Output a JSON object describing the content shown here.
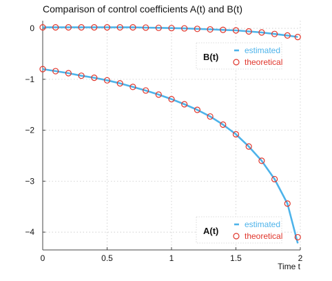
{
  "chart_data": {
    "type": "line",
    "title": "Comparison of control coefficients A(t) and B(t)",
    "xlabel": "Time t",
    "ylabel": "",
    "xlim": [
      0,
      2
    ],
    "ylim": [
      -4.35,
      0.15
    ],
    "xticks": [
      0,
      0.5,
      1,
      1.5,
      2
    ],
    "xtick_labels": [
      "0",
      "0.5",
      "1",
      "1.5",
      "2"
    ],
    "yticks": [
      0,
      -1,
      -2,
      -3,
      -4
    ],
    "ytick_labels": [
      "0",
      "−1",
      "−2",
      "−3",
      "−4"
    ],
    "grid": true,
    "colors": {
      "estimated": "#4db3ea",
      "theoretical": "#e0352b"
    },
    "groups": [
      {
        "label": "B(t)",
        "legend_position": "upper-right",
        "series": [
          {
            "name": "estimated",
            "style": "line",
            "x": [
              0,
              0.1,
              0.2,
              0.3,
              0.4,
              0.5,
              0.6,
              0.7,
              0.8,
              0.9,
              1.0,
              1.1,
              1.2,
              1.3,
              1.4,
              1.5,
              1.6,
              1.7,
              1.8,
              1.9,
              1.98
            ],
            "y": [
              0.02,
              0.02,
              0.02,
              0.02,
              0.02,
              0.02,
              0.02,
              0.02,
              0.015,
              0.01,
              0.005,
              0.0,
              -0.01,
              -0.02,
              -0.03,
              -0.04,
              -0.06,
              -0.08,
              -0.11,
              -0.14,
              -0.17
            ]
          },
          {
            "name": "theoretical",
            "style": "markers",
            "x": [
              0,
              0.1,
              0.2,
              0.3,
              0.4,
              0.5,
              0.6,
              0.7,
              0.8,
              0.9,
              1.0,
              1.1,
              1.2,
              1.3,
              1.4,
              1.5,
              1.6,
              1.7,
              1.8,
              1.9,
              1.98
            ],
            "y": [
              0.02,
              0.02,
              0.02,
              0.02,
              0.02,
              0.02,
              0.02,
              0.02,
              0.015,
              0.01,
              0.005,
              0.0,
              -0.01,
              -0.02,
              -0.03,
              -0.04,
              -0.06,
              -0.08,
              -0.11,
              -0.14,
              -0.17
            ]
          }
        ]
      },
      {
        "label": "A(t)",
        "legend_position": "lower-right",
        "series": [
          {
            "name": "estimated",
            "style": "line",
            "x": [
              0,
              0.1,
              0.2,
              0.3,
              0.4,
              0.5,
              0.6,
              0.7,
              0.8,
              0.9,
              1.0,
              1.1,
              1.2,
              1.3,
              1.4,
              1.5,
              1.6,
              1.7,
              1.8,
              1.9,
              1.98
            ],
            "y": [
              -0.8,
              -0.84,
              -0.88,
              -0.93,
              -0.97,
              -1.02,
              -1.08,
              -1.15,
              -1.22,
              -1.3,
              -1.39,
              -1.49,
              -1.6,
              -1.73,
              -1.89,
              -2.08,
              -2.32,
              -2.6,
              -2.96,
              -3.44,
              -4.22
            ]
          },
          {
            "name": "theoretical",
            "style": "markers",
            "x": [
              0,
              0.1,
              0.2,
              0.3,
              0.4,
              0.5,
              0.6,
              0.7,
              0.8,
              0.9,
              1.0,
              1.1,
              1.2,
              1.3,
              1.4,
              1.5,
              1.6,
              1.7,
              1.8,
              1.9,
              1.98
            ],
            "y": [
              -0.8,
              -0.84,
              -0.88,
              -0.93,
              -0.97,
              -1.02,
              -1.08,
              -1.15,
              -1.22,
              -1.3,
              -1.39,
              -1.49,
              -1.6,
              -1.73,
              -1.89,
              -2.08,
              -2.32,
              -2.6,
              -2.96,
              -3.44,
              -4.1
            ]
          }
        ]
      }
    ]
  }
}
